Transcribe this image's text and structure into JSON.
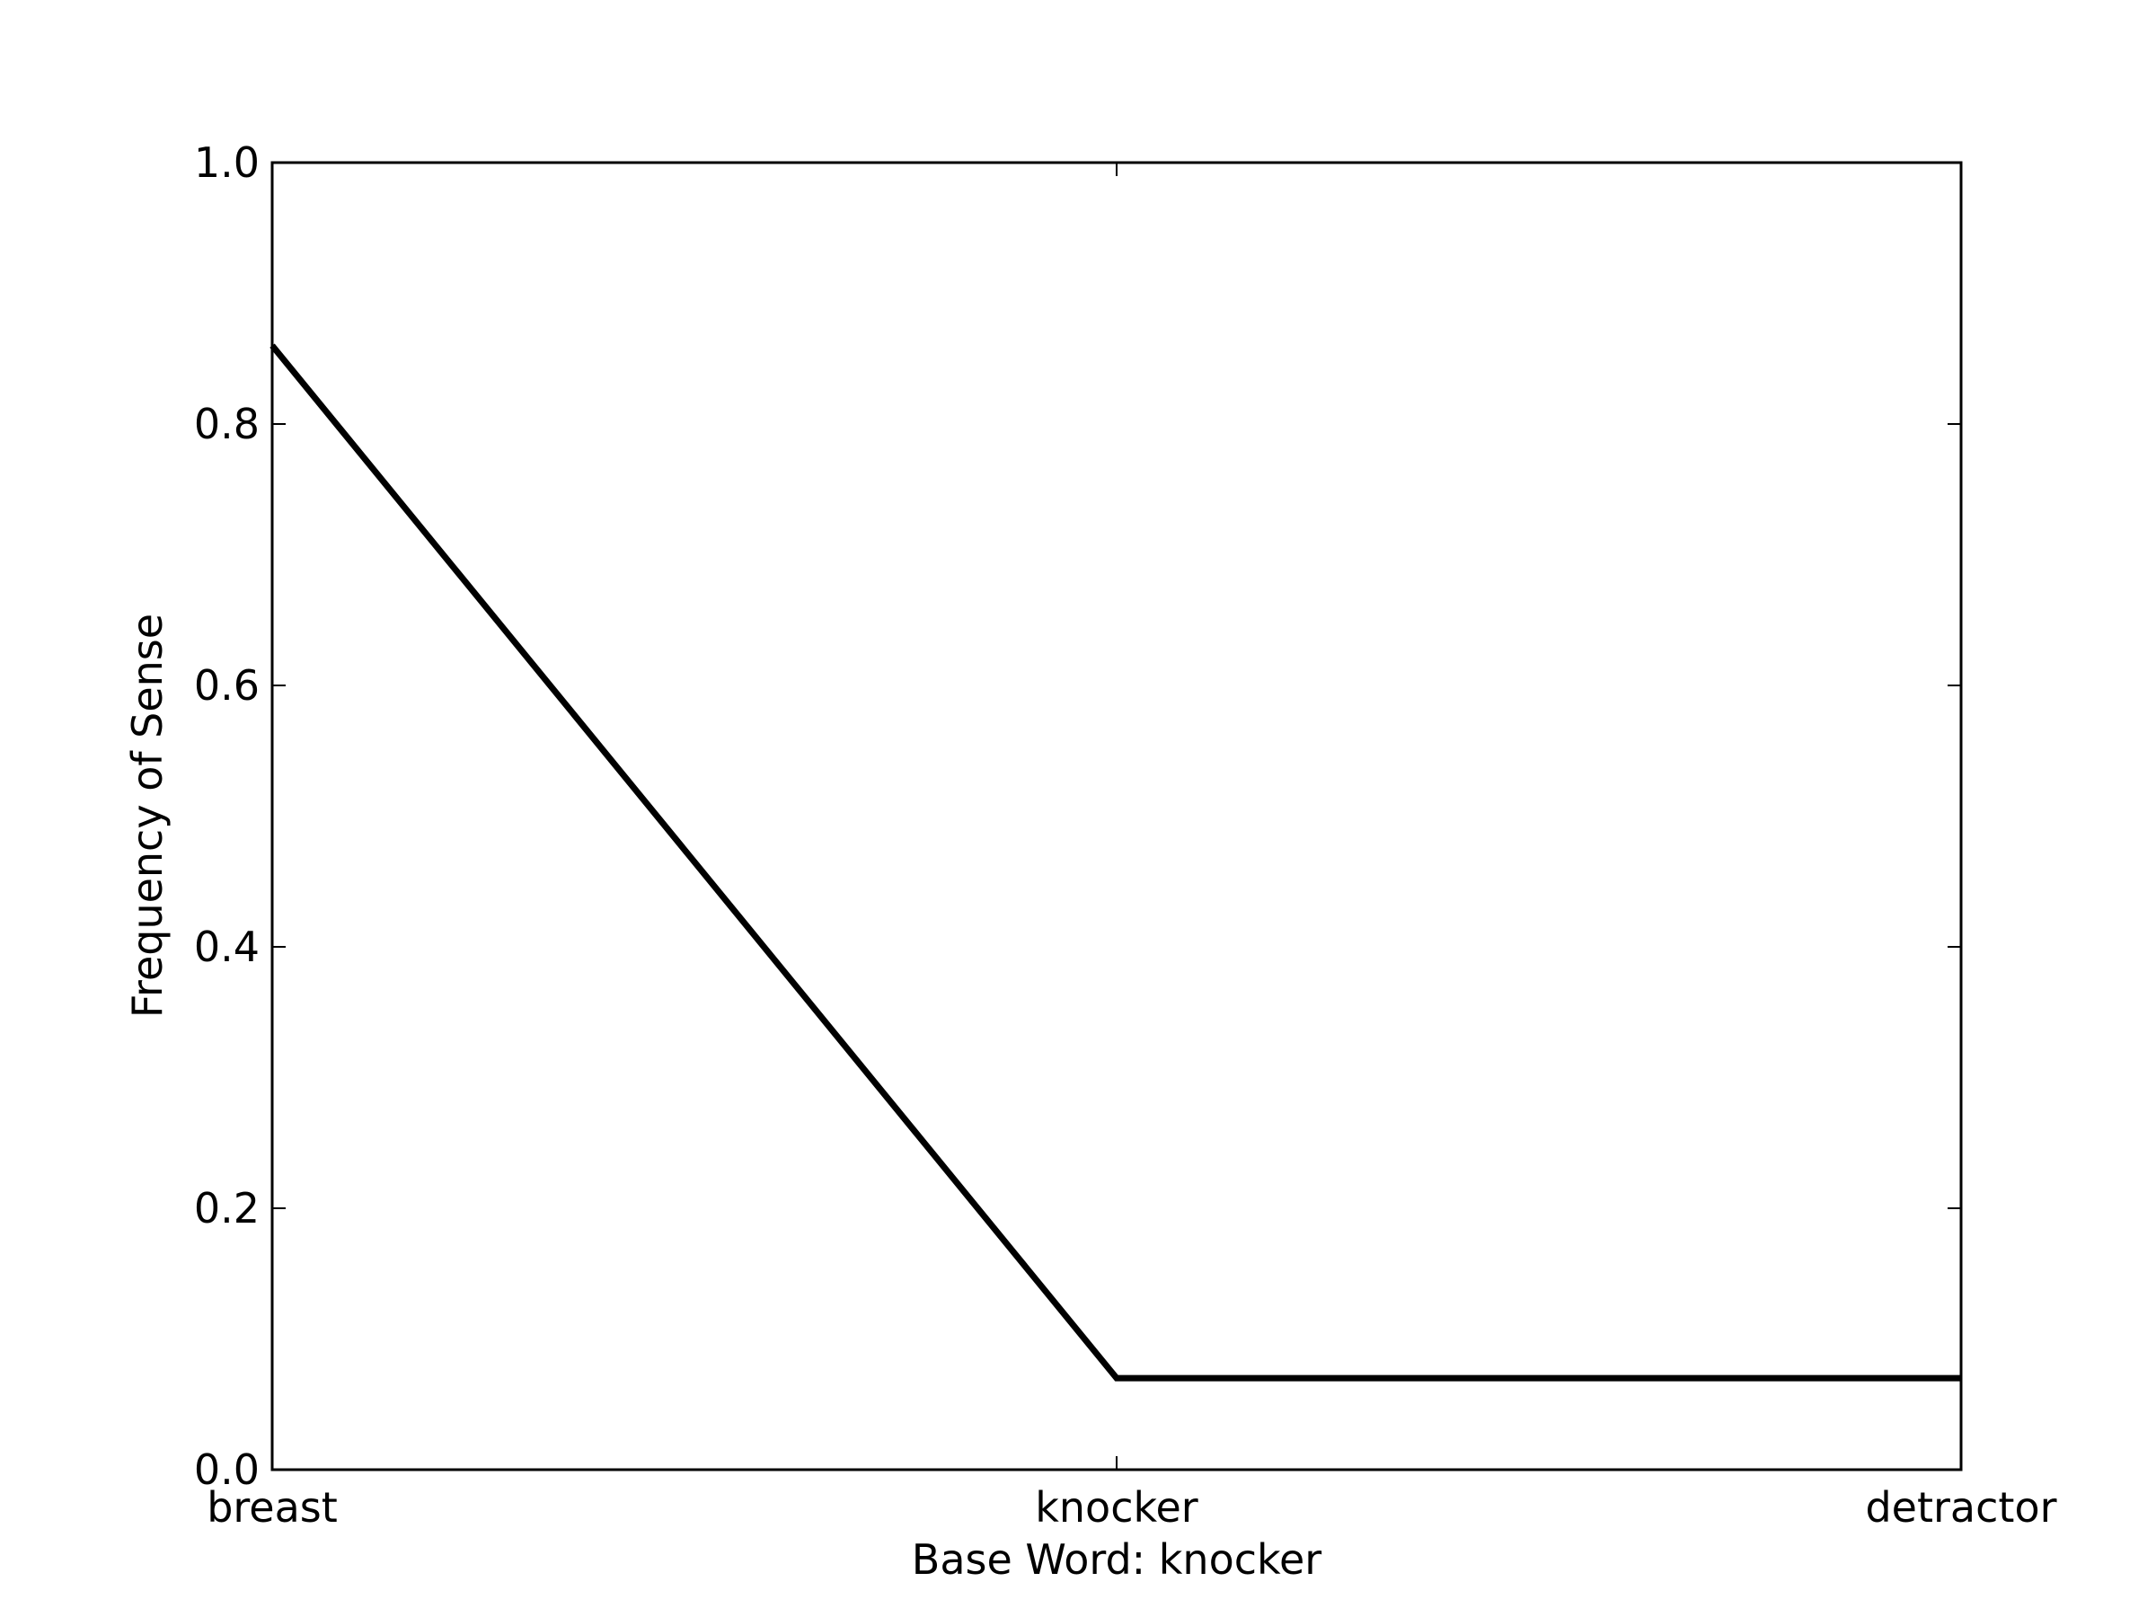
{
  "chart_data": {
    "type": "line",
    "categories": [
      "breast",
      "knocker",
      "detractor"
    ],
    "series": [
      {
        "values": [
          0.86,
          0.07,
          0.07
        ],
        "color": "#000000"
      }
    ],
    "xlabel": "Base Word: knocker",
    "ylabel": "Frequency of Sense",
    "ylim": [
      0.0,
      1.0
    ],
    "yticks": [
      "0.0",
      "0.2",
      "0.4",
      "0.6",
      "0.8",
      "1.0"
    ],
    "grid": false
  }
}
